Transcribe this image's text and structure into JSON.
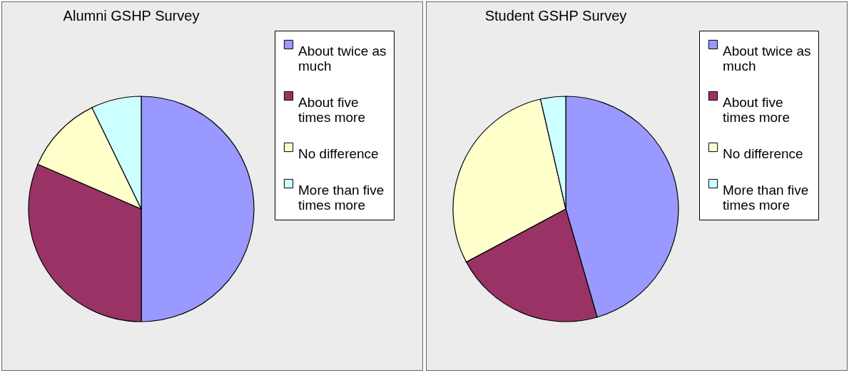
{
  "chart_data": [
    {
      "type": "pie",
      "title": "Alumni GSHP Survey",
      "categories": [
        "About twice as much",
        "About five times more",
        "No difference",
        "More than five times more"
      ],
      "values": [
        50,
        31.5,
        11.3,
        7.2
      ],
      "colors": [
        "#9999ff",
        "#993366",
        "#ffffcc",
        "#ccffff"
      ],
      "legend": "right"
    },
    {
      "type": "pie",
      "title": "Student GSHP Survey",
      "categories": [
        "About twice as much",
        "About five times more",
        "No difference",
        "More than five times more"
      ],
      "values": [
        45.5,
        21.7,
        29.2,
        3.6
      ],
      "colors": [
        "#9999ff",
        "#993366",
        "#ffffcc",
        "#ccffff"
      ],
      "legend": "right"
    }
  ]
}
